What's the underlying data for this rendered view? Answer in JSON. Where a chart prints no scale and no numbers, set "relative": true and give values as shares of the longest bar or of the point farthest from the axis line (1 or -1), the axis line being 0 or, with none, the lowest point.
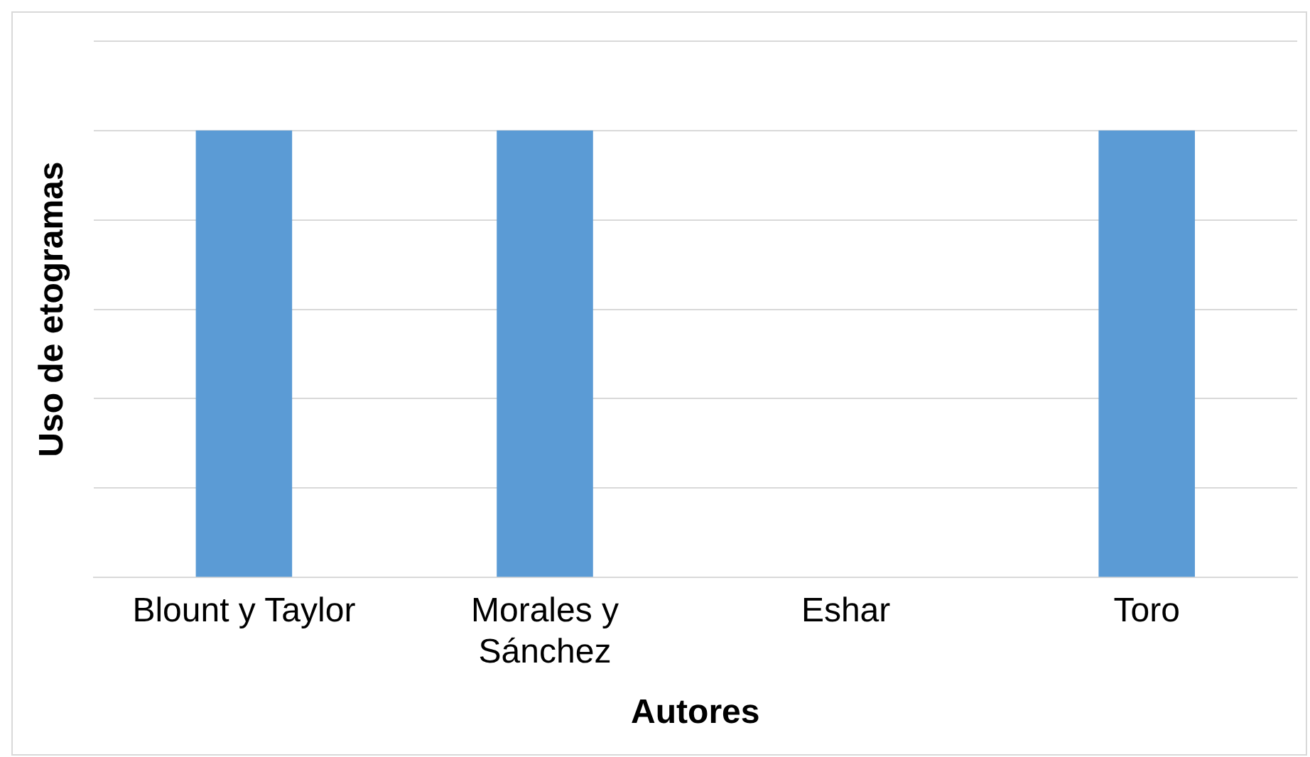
{
  "chart_data": {
    "type": "bar",
    "relative": true,
    "xlabel": "Autores",
    "ylabel": "Uso de etogramas",
    "categories": [
      "Blount y Taylor",
      "Morales y Sánchez",
      "Eshar",
      "Toro"
    ],
    "values": [
      1,
      1,
      0,
      1
    ],
    "color": "#5b9bd5",
    "grid": "y",
    "legend": false
  }
}
